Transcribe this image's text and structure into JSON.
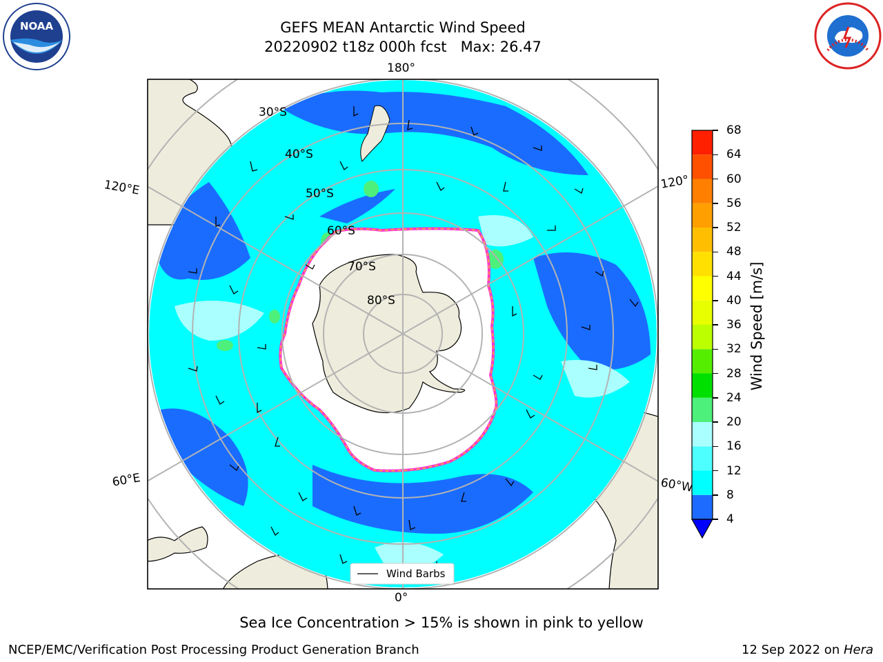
{
  "title": {
    "line1": "GEFS MEAN Antarctic Wind Speed",
    "line2": "20220902 t18z 000h fcst   Max: 26.47"
  },
  "logos": {
    "left": {
      "icon": "noaa-logo",
      "text": "NOAA"
    },
    "right": {
      "icon": "nws-logo",
      "text": "NATIONAL WEATHER SERVICE"
    }
  },
  "map": {
    "projection": "south-polar-stereographic",
    "longitude_labels": {
      "top": "180°",
      "bottom": "0°",
      "left_upper": "120°E",
      "left_lower": "60°E",
      "right_upper": "120°",
      "right_lower": "60°W"
    },
    "latitude_labels": [
      "30°S",
      "40°S",
      "50°S",
      "60°S",
      "70°S",
      "80°S"
    ],
    "legend_label": "Wind Barbs",
    "colors": {
      "land": "#eeecdc",
      "ocean_low": "#1a6cff",
      "ocean_mid": "#00ffff",
      "ocean_light": "#aaffff",
      "ice_edge_pink": "#ff33cc",
      "ice_edge_yellow": "#ffb833",
      "gridlines": "#b3b3b3"
    }
  },
  "colorbar": {
    "label": "Wind Speed [m/s]",
    "ticks": [
      "4",
      "8",
      "12",
      "16",
      "20",
      "24",
      "28",
      "32",
      "36",
      "40",
      "44",
      "48",
      "52",
      "56",
      "60",
      "64",
      "68"
    ],
    "colors": [
      "#1e6bff",
      "#00ffff",
      "#4dffff",
      "#aaffff",
      "#4df07a",
      "#00e000",
      "#55ee00",
      "#bbff00",
      "#e8ff00",
      "#ffff00",
      "#ffe000",
      "#ffbf00",
      "#ff9f00",
      "#ff7f00",
      "#ff5000",
      "#ff2000"
    ],
    "under_color": "#0000ff"
  },
  "caption": "Sea Ice Concentration > 15% is shown in pink to yellow",
  "footer": {
    "left": "NCEP/EMC/Verification Post Processing Product Generation Branch",
    "right_date": "12 Sep 2022 on ",
    "right_machine": "Hera"
  }
}
